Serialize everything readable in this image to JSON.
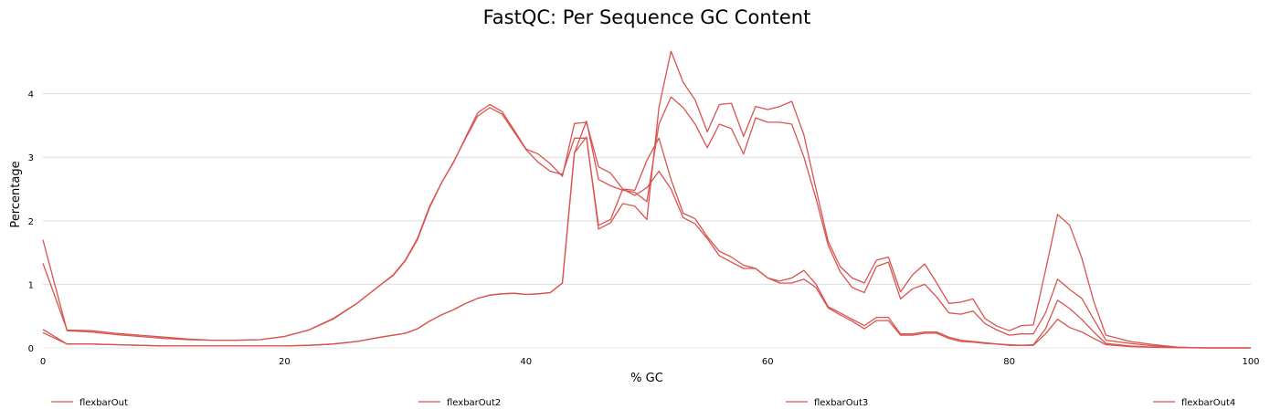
{
  "chart_data": {
    "type": "line",
    "title": "FastQC: Per Sequence GC Content",
    "xlabel": "% GC",
    "ylabel": "Percentage",
    "xlim": [
      0,
      100
    ],
    "ylim": [
      0,
      4.9
    ],
    "xticks": [
      0,
      20,
      40,
      60,
      80,
      100
    ],
    "yticks": [
      0,
      1,
      2,
      3,
      4
    ],
    "grid": "horizontal",
    "legend_position": "bottom",
    "series_color": "#d9534f",
    "series": [
      {
        "name": "flexbarOut",
        "x": [
          0,
          2,
          4,
          6,
          8,
          10,
          12,
          14,
          16,
          18,
          20,
          22,
          24,
          26,
          28,
          29,
          30,
          31,
          32,
          33,
          34,
          35,
          36,
          37,
          38,
          39,
          40,
          41,
          42,
          43,
          44,
          45,
          46,
          47,
          48,
          49,
          50,
          51,
          52,
          53,
          54,
          55,
          56,
          57,
          58,
          59,
          60,
          61,
          62,
          63,
          64,
          65,
          66,
          67,
          68,
          69,
          70,
          71,
          72,
          73,
          74,
          75,
          76,
          77,
          78,
          79,
          80,
          81,
          82,
          83,
          84,
          85,
          86,
          87,
          88,
          90,
          92,
          94,
          96,
          98,
          100
        ],
        "y": [
          1.7,
          0.27,
          0.25,
          0.21,
          0.18,
          0.15,
          0.13,
          0.12,
          0.12,
          0.13,
          0.18,
          0.28,
          0.45,
          0.7,
          1.0,
          1.14,
          1.37,
          1.7,
          2.2,
          2.6,
          2.93,
          3.3,
          3.65,
          3.78,
          3.68,
          3.4,
          3.12,
          2.92,
          2.78,
          2.73,
          3.3,
          3.3,
          1.93,
          2.02,
          2.5,
          2.48,
          2.95,
          3.3,
          2.65,
          2.12,
          2.03,
          1.75,
          1.52,
          1.43,
          1.3,
          1.25,
          1.1,
          1.05,
          1.1,
          1.22,
          1.0,
          0.65,
          0.55,
          0.45,
          0.35,
          0.48,
          0.48,
          0.22,
          0.22,
          0.25,
          0.25,
          0.17,
          0.12,
          0.1,
          0.08,
          0.06,
          0.05,
          0.04,
          0.04,
          0.22,
          0.45,
          0.32,
          0.25,
          0.15,
          0.05,
          0.02,
          0.01,
          0.005,
          0,
          0,
          0
        ]
      },
      {
        "name": "flexbarOut2",
        "x": [
          0,
          2,
          4,
          6,
          8,
          10,
          12,
          14,
          16,
          18,
          20,
          22,
          24,
          26,
          28,
          29,
          30,
          31,
          32,
          33,
          34,
          35,
          36,
          37,
          38,
          39,
          40,
          41,
          42,
          43,
          44,
          45,
          46,
          47,
          48,
          49,
          50,
          51,
          52,
          53,
          54,
          55,
          56,
          57,
          58,
          59,
          60,
          61,
          62,
          63,
          64,
          65,
          66,
          67,
          68,
          69,
          70,
          71,
          72,
          73,
          74,
          75,
          76,
          77,
          78,
          79,
          80,
          81,
          82,
          83,
          84,
          85,
          86,
          87,
          88,
          90,
          92,
          94,
          96,
          98,
          100
        ],
        "y": [
          1.33,
          0.28,
          0.27,
          0.23,
          0.2,
          0.17,
          0.14,
          0.12,
          0.12,
          0.13,
          0.18,
          0.28,
          0.46,
          0.7,
          1.0,
          1.15,
          1.38,
          1.72,
          2.22,
          2.6,
          2.92,
          3.32,
          3.7,
          3.83,
          3.72,
          3.43,
          3.13,
          3.05,
          2.9,
          2.7,
          3.53,
          3.55,
          2.85,
          2.75,
          2.5,
          2.4,
          2.52,
          2.78,
          2.5,
          2.05,
          1.95,
          1.72,
          1.45,
          1.35,
          1.25,
          1.25,
          1.1,
          1.02,
          1.02,
          1.08,
          0.95,
          0.63,
          0.52,
          0.42,
          0.3,
          0.43,
          0.43,
          0.2,
          0.2,
          0.23,
          0.23,
          0.15,
          0.1,
          0.09,
          0.07,
          0.06,
          0.04,
          0.04,
          0.05,
          0.3,
          0.75,
          0.62,
          0.45,
          0.25,
          0.07,
          0.03,
          0.01,
          0.005,
          0,
          0,
          0
        ]
      },
      {
        "name": "flexbarOut3",
        "x": [
          0,
          2,
          4,
          6,
          8,
          10,
          12,
          14,
          16,
          18,
          20,
          22,
          24,
          26,
          28,
          29,
          30,
          31,
          32,
          33,
          34,
          35,
          36,
          37,
          38,
          39,
          40,
          41,
          42,
          43,
          44,
          45,
          46,
          47,
          48,
          49,
          50,
          51,
          52,
          53,
          54,
          55,
          56,
          57,
          58,
          59,
          60,
          61,
          62,
          63,
          64,
          65,
          66,
          67,
          68,
          69,
          70,
          71,
          72,
          73,
          74,
          75,
          76,
          77,
          78,
          79,
          80,
          81,
          82,
          83,
          84,
          85,
          86,
          87,
          88,
          90,
          92,
          94,
          96,
          98,
          100
        ],
        "y": [
          0.29,
          0.06,
          0.06,
          0.05,
          0.04,
          0.03,
          0.03,
          0.03,
          0.03,
          0.03,
          0.03,
          0.04,
          0.06,
          0.1,
          0.17,
          0.2,
          0.23,
          0.3,
          0.42,
          0.52,
          0.6,
          0.7,
          0.78,
          0.83,
          0.85,
          0.86,
          0.84,
          0.85,
          0.87,
          1.02,
          3.07,
          3.32,
          1.87,
          1.97,
          2.27,
          2.23,
          2.02,
          3.78,
          4.67,
          4.18,
          3.9,
          3.4,
          3.83,
          3.85,
          3.33,
          3.8,
          3.75,
          3.8,
          3.88,
          3.35,
          2.5,
          1.68,
          1.28,
          1.1,
          1.02,
          1.38,
          1.43,
          0.88,
          1.15,
          1.32,
          1.02,
          0.7,
          0.72,
          0.77,
          0.46,
          0.34,
          0.27,
          0.35,
          0.36,
          1.22,
          2.1,
          1.93,
          1.42,
          0.73,
          0.2,
          0.1,
          0.05,
          0.01,
          0,
          0,
          0
        ]
      },
      {
        "name": "flexbarOut4",
        "x": [
          0,
          2,
          4,
          6,
          8,
          10,
          12,
          14,
          16,
          18,
          20,
          22,
          24,
          26,
          28,
          29,
          30,
          31,
          32,
          33,
          34,
          35,
          36,
          37,
          38,
          39,
          40,
          41,
          42,
          43,
          44,
          45,
          46,
          47,
          48,
          49,
          50,
          51,
          52,
          53,
          54,
          55,
          56,
          57,
          58,
          59,
          60,
          61,
          62,
          63,
          64,
          65,
          66,
          67,
          68,
          69,
          70,
          71,
          72,
          73,
          74,
          75,
          76,
          77,
          78,
          79,
          80,
          81,
          82,
          83,
          84,
          85,
          86,
          87,
          88,
          90,
          92,
          94,
          96,
          98,
          100
        ],
        "y": [
          0.24,
          0.06,
          0.06,
          0.05,
          0.04,
          0.03,
          0.03,
          0.03,
          0.03,
          0.03,
          0.03,
          0.04,
          0.06,
          0.1,
          0.17,
          0.2,
          0.23,
          0.3,
          0.42,
          0.52,
          0.6,
          0.7,
          0.78,
          0.83,
          0.85,
          0.86,
          0.84,
          0.85,
          0.87,
          1.02,
          3.07,
          3.57,
          2.65,
          2.55,
          2.48,
          2.45,
          2.3,
          3.52,
          3.95,
          3.78,
          3.52,
          3.15,
          3.52,
          3.45,
          3.05,
          3.62,
          3.55,
          3.55,
          3.52,
          3.0,
          2.35,
          1.62,
          1.2,
          0.95,
          0.87,
          1.28,
          1.35,
          0.77,
          0.93,
          1.0,
          0.8,
          0.55,
          0.53,
          0.58,
          0.38,
          0.28,
          0.2,
          0.22,
          0.22,
          0.55,
          1.08,
          0.92,
          0.78,
          0.45,
          0.12,
          0.07,
          0.03,
          0.01,
          0,
          0,
          0
        ]
      }
    ]
  }
}
